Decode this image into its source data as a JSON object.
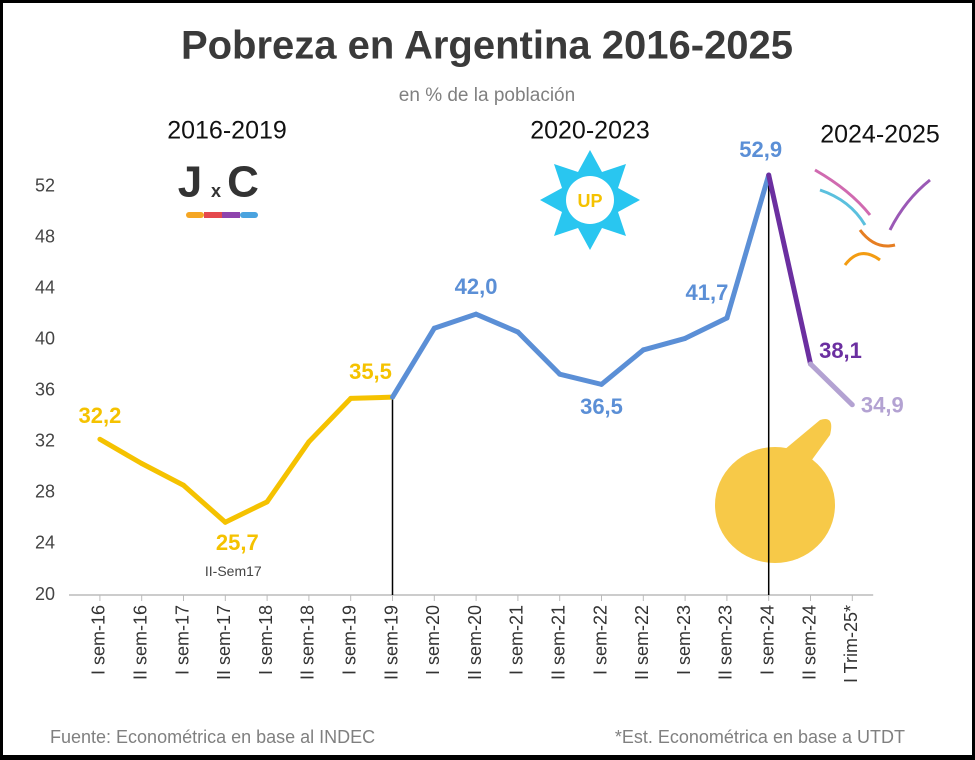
{
  "chart_data": {
    "type": "line",
    "title": "Pobreza en Argentina 2016-2025",
    "subtitle": "en % de la población",
    "periods": [
      "2016-2019",
      "2020-2023",
      "2024-2025"
    ],
    "logos": {
      "jxc_left": "J",
      "jxc_mid": "x",
      "jxc_right": "C",
      "up": "UP"
    },
    "categories": [
      "I sem-16",
      "II sem-16",
      "I sem-17",
      "II sem-17",
      "I sem-18",
      "II sem-18",
      "I sem-19",
      "II sem-19",
      "I sem-20",
      "II sem-20",
      "I sem-21",
      "II sem-21",
      "I sem-22",
      "II sem-22",
      "I sem-23",
      "II sem-23",
      "I sem-24",
      "II sem-24",
      "I Trim-25*"
    ],
    "values": [
      32.2,
      30.3,
      28.6,
      25.7,
      27.3,
      32.0,
      35.4,
      35.5,
      40.9,
      42.0,
      40.6,
      37.3,
      36.5,
      39.2,
      40.1,
      41.7,
      52.9,
      38.1,
      34.9
    ],
    "value_labels": [
      "32,2",
      null,
      null,
      "25,7",
      null,
      null,
      null,
      "35,5",
      null,
      "42,0",
      null,
      null,
      "36,5",
      null,
      null,
      "41,7",
      "52,9",
      "38,1",
      "34,9"
    ],
    "segment_colors": [
      "#f5c200",
      "#f5c200",
      "#f5c200",
      "#f5c200",
      "#f5c200",
      "#f5c200",
      "#f5c200",
      "#5b8fd6",
      "#5b8fd6",
      "#5b8fd6",
      "#5b8fd6",
      "#5b8fd6",
      "#5b8fd6",
      "#5b8fd6",
      "#5b8fd6",
      "#5b8fd6",
      "#6b2fa0",
      "#b3a2d2"
    ],
    "annotation": "II-Sem17",
    "ylim": [
      20,
      54
    ],
    "yticks": [
      20,
      24,
      28,
      32,
      36,
      40,
      44,
      48,
      52
    ],
    "source": "Fuente: Econométrica en base al INDEC",
    "note": "*Est. Econométrica en base a UTDT"
  }
}
